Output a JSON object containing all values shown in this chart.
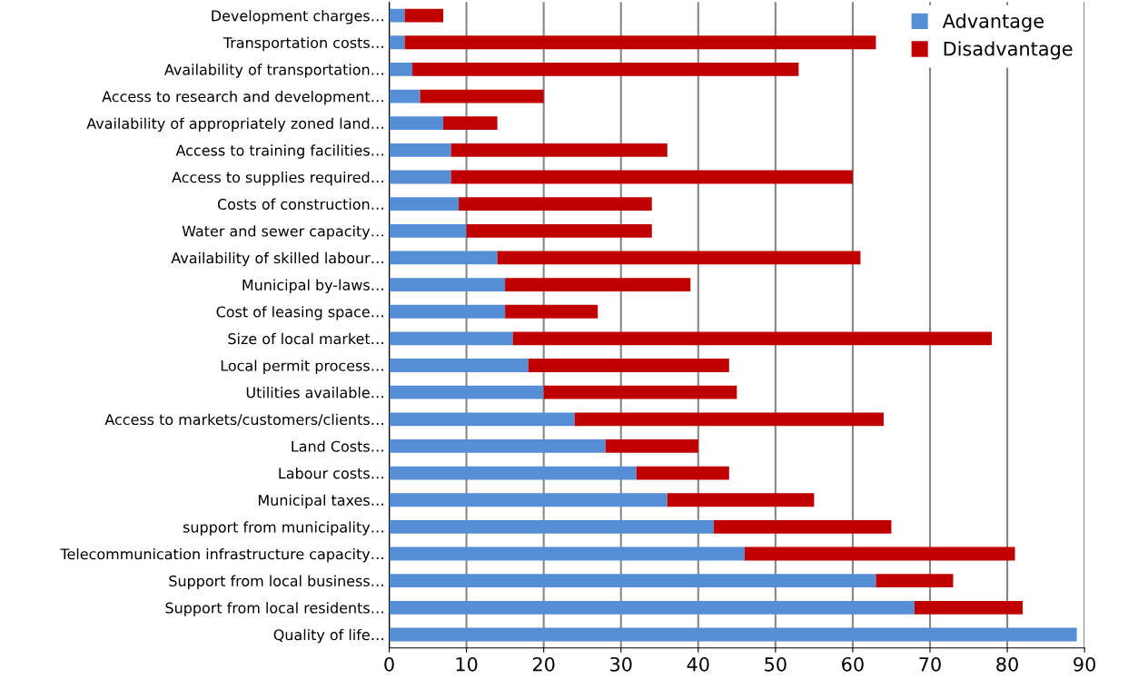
{
  "chart_data": {
    "type": "bar",
    "orientation": "horizontal",
    "stacked": true,
    "categories": [
      "Development charges…",
      "Transportation costs…",
      "Availability of transportation…",
      "Access to research and development…",
      "Availability of appropriately zoned land…",
      "Access to training facilities…",
      "Access to supplies required…",
      "Costs of construction…",
      "Water and sewer capacity…",
      "Availability of skilled labour…",
      "Municipal by-laws…",
      "Cost of leasing space…",
      "Size of local market…",
      "Local permit process…",
      "Utilities available…",
      "Access to markets/customers/clients…",
      "Land Costs…",
      "Labour costs…",
      "Municipal taxes…",
      "support from municipality…",
      "Telecommunication infrastructure capacity…",
      "Support from local business…",
      "Support from local residents…",
      "Quality of life…"
    ],
    "series": [
      {
        "name": "Advantage",
        "color": "#558ed5",
        "values": [
          2,
          2,
          3,
          4,
          7,
          8,
          8,
          9,
          10,
          14,
          15,
          15,
          16,
          18,
          20,
          24,
          28,
          32,
          36,
          42,
          46,
          63,
          68,
          89
        ]
      },
      {
        "name": "Disadvantage",
        "color": "#c00000",
        "values": [
          5,
          61,
          50,
          16,
          7,
          28,
          52,
          25,
          24,
          47,
          24,
          12,
          62,
          26,
          25,
          40,
          12,
          12,
          19,
          23,
          35,
          10,
          14,
          0
        ]
      }
    ],
    "xlim": [
      0,
      90
    ],
    "xticks": [
      0,
      10,
      20,
      30,
      40,
      50,
      60,
      70,
      80,
      90
    ],
    "grid": "x",
    "legend": "top right"
  }
}
